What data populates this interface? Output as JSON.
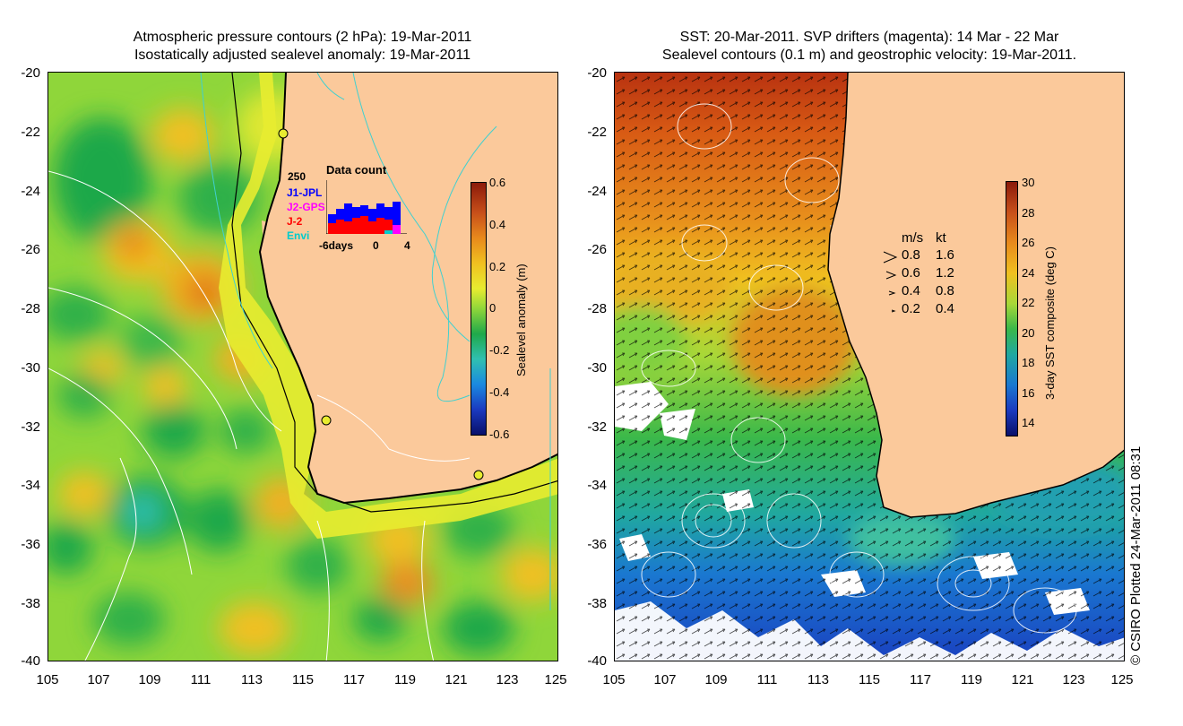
{
  "left_panel": {
    "title_line1": "Atmospheric pressure contours (2 hPa): 19-Mar-2011",
    "title_line2": "Isostatically adjusted sealevel anomaly: 19-Mar-2011",
    "colorbar": {
      "title": "Sealevel anomaly (m)",
      "ticks": [
        "0.6",
        "0.4",
        "0.2",
        "0",
        "-0.2",
        "-0.4",
        "-0.6"
      ],
      "range": [
        -0.6,
        0.6
      ]
    },
    "data_count_inset": {
      "title": "Data count",
      "ymax_label": "250",
      "series": [
        {
          "name": "J1-JPL",
          "color": "#0000ff"
        },
        {
          "name": "J2-GPS",
          "color": "#ff00ff"
        },
        {
          "name": "J-2",
          "color": "#ff0000"
        },
        {
          "name": "Envi",
          "color": "#00cccc"
        }
      ],
      "x_labels": [
        "-6days",
        "0",
        "4"
      ]
    }
  },
  "right_panel": {
    "title_line1": "SST: 20-Mar-2011. SVP drifters (magenta): 14 Mar - 22 Mar",
    "title_line2": "Sealevel contours (0.1 m) and geostrophic velocity: 19-Mar-2011.",
    "colorbar": {
      "title": "3-day SST composite (deg C)",
      "ticks": [
        "30",
        "28",
        "26",
        "24",
        "22",
        "20",
        "18",
        "16",
        "14"
      ],
      "range": [
        13,
        30
      ]
    },
    "velocity_legend": {
      "header_ms": "m/s",
      "header_kt": "kt",
      "rows": [
        {
          "ms": "0.8",
          "kt": "1.6"
        },
        {
          "ms": "0.6",
          "kt": "1.2"
        },
        {
          "ms": "0.4",
          "kt": "0.8"
        },
        {
          "ms": "0.2",
          "kt": "0.4"
        }
      ]
    }
  },
  "axes": {
    "lat_ticks": [
      "-20",
      "-22",
      "-24",
      "-26",
      "-28",
      "-30",
      "-32",
      "-34",
      "-36",
      "-38",
      "-40"
    ],
    "lon_ticks": [
      "105",
      "107",
      "109",
      "111",
      "113",
      "115",
      "117",
      "119",
      "121",
      "123",
      "125"
    ]
  },
  "credit": "© CSIRO Plotted 24-Mar-2011 08:31",
  "colors": {
    "land": "#fbc99b",
    "coast": "#000000",
    "contour": "#ffffff",
    "bathy": "#40d0d0"
  }
}
